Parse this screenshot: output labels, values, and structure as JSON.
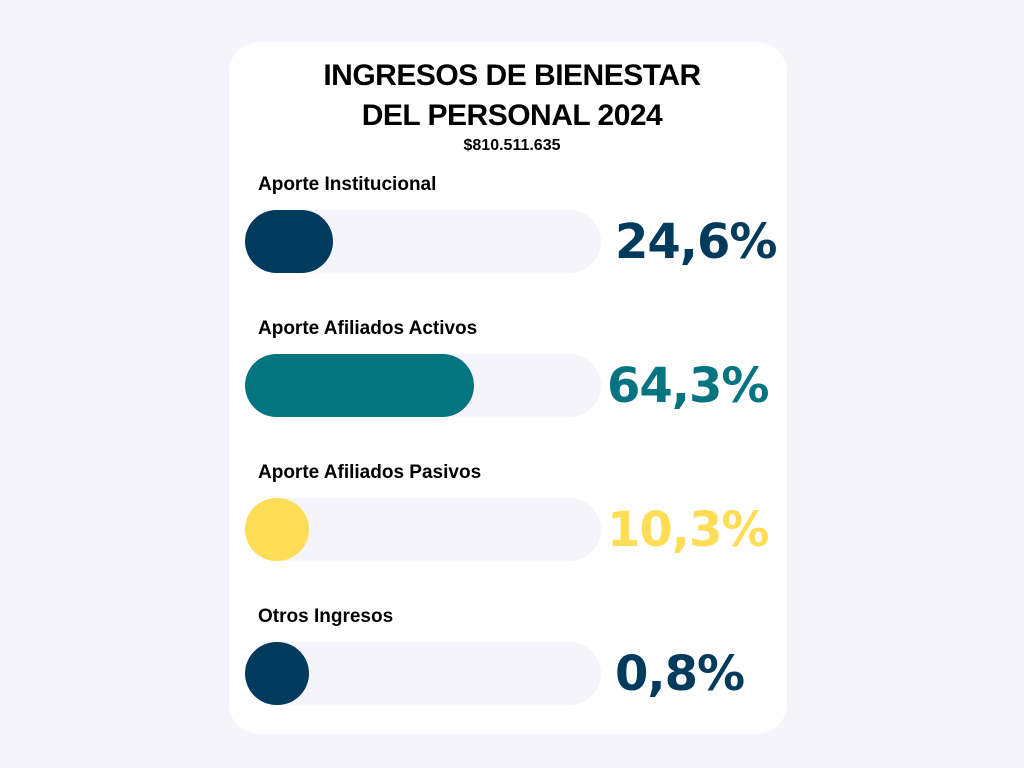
{
  "chart_data": {
    "type": "bar",
    "title_lines": [
      "INGRESOS DE BIENESTAR",
      "DEL PERSONAL 2024"
    ],
    "subtitle": "$810.511.635",
    "categories": [
      "Aporte Institucional",
      "Aporte Afiliados Activos",
      "Aporte Afiliados Pasivos",
      "Otros Ingresos"
    ],
    "values": [
      24.6,
      64.3,
      10.3,
      0.8
    ],
    "value_labels": [
      "24,6%",
      "64,3%",
      "10,3%",
      "0,8%"
    ],
    "colors": [
      "#003a5c",
      "#047480",
      "#ffdd57",
      "#003a5c"
    ],
    "ylim": [
      0,
      100
    ],
    "grid": false,
    "legend": "none"
  }
}
